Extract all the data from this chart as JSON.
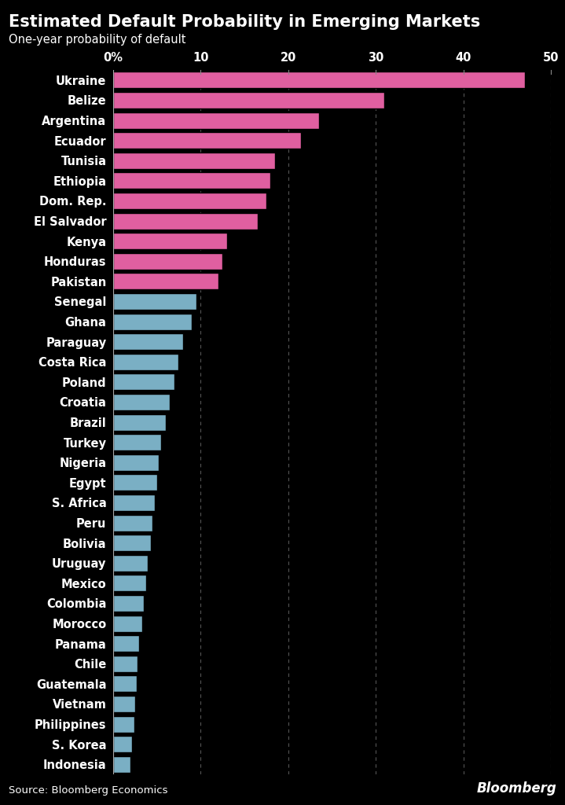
{
  "title": "Estimated Default Probability in Emerging Markets",
  "subtitle": "One-year probability of default",
  "source": "Source: Bloomberg Economics",
  "bloomberg_label": "Bloomberg",
  "background_color": "#000000",
  "text_color": "#ffffff",
  "pink_color": "#e05fa0",
  "blue_color": "#7aafc4",
  "countries": [
    "Ukraine",
    "Belize",
    "Argentina",
    "Ecuador",
    "Tunisia",
    "Ethiopia",
    "Dom. Rep.",
    "El Salvador",
    "Kenya",
    "Honduras",
    "Pakistan",
    "Senegal",
    "Ghana",
    "Paraguay",
    "Costa Rica",
    "Poland",
    "Croatia",
    "Brazil",
    "Turkey",
    "Nigeria",
    "Egypt",
    "S. Africa",
    "Peru",
    "Bolivia",
    "Uruguay",
    "Mexico",
    "Colombia",
    "Morocco",
    "Panama",
    "Chile",
    "Guatemala",
    "Vietnam",
    "Philippines",
    "S. Korea",
    "Indonesia"
  ],
  "values": [
    47.0,
    31.0,
    23.5,
    21.5,
    18.5,
    18.0,
    17.5,
    16.5,
    13.0,
    12.5,
    12.0,
    9.5,
    9.0,
    8.0,
    7.5,
    7.0,
    6.5,
    6.0,
    5.5,
    5.2,
    5.0,
    4.8,
    4.5,
    4.3,
    4.0,
    3.8,
    3.5,
    3.3,
    3.0,
    2.8,
    2.7,
    2.5,
    2.4,
    2.2,
    2.0
  ],
  "colors": [
    "#e05fa0",
    "#e05fa0",
    "#e05fa0",
    "#e05fa0",
    "#e05fa0",
    "#e05fa0",
    "#e05fa0",
    "#e05fa0",
    "#e05fa0",
    "#e05fa0",
    "#e05fa0",
    "#7aafc4",
    "#7aafc4",
    "#7aafc4",
    "#7aafc4",
    "#7aafc4",
    "#7aafc4",
    "#7aafc4",
    "#7aafc4",
    "#7aafc4",
    "#7aafc4",
    "#7aafc4",
    "#7aafc4",
    "#7aafc4",
    "#7aafc4",
    "#7aafc4",
    "#7aafc4",
    "#7aafc4",
    "#7aafc4",
    "#7aafc4",
    "#7aafc4",
    "#7aafc4",
    "#7aafc4",
    "#7aafc4",
    "#7aafc4"
  ],
  "xlim": [
    0,
    50
  ],
  "xticks": [
    0,
    10,
    20,
    30,
    40,
    50
  ],
  "xticklabels": [
    "0%",
    "10",
    "20",
    "30",
    "40",
    "50"
  ],
  "grid_lines": [
    10,
    20,
    30,
    40,
    50
  ]
}
